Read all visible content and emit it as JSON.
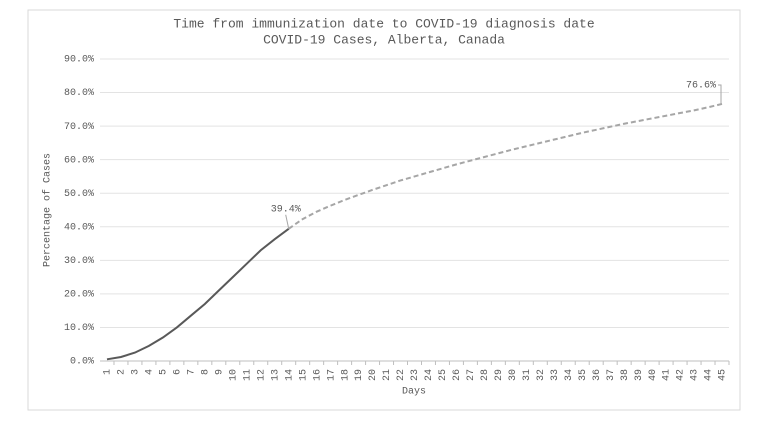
{
  "chart_data": {
    "type": "line",
    "title": "Time from immunization date to COVID-19 diagnosis date",
    "subtitle": "COVID-19 Cases, Alberta, Canada",
    "x_label": "Days",
    "y_label": "Percentage of Cases",
    "categories": [
      "1",
      "2",
      "3",
      "4",
      "5",
      "6",
      "7",
      "8",
      "9",
      "10",
      "11",
      "12",
      "13",
      "14",
      "15",
      "16",
      "17",
      "18",
      "19",
      "20",
      "21",
      "22",
      "23",
      "24",
      "25",
      "26",
      "27",
      "28",
      "29",
      "30",
      "31",
      "32",
      "33",
      "34",
      "35",
      "36",
      "37",
      "38",
      "39",
      "40",
      "41",
      "42",
      "43",
      "44",
      "45"
    ],
    "series": [
      {
        "color": "#595959",
        "line_style": "solid",
        "values": [
          0.5,
          1.2,
          2.5,
          4.5,
          7,
          10,
          13.5,
          17,
          21,
          25,
          29,
          33,
          36.3,
          39.4,
          null,
          null,
          null,
          null,
          null,
          null,
          null,
          null,
          null,
          null,
          null,
          null,
          null,
          null,
          null,
          null,
          null,
          null,
          null,
          null,
          null,
          null,
          null,
          null,
          null,
          null,
          null,
          null,
          null,
          null,
          null
        ],
        "value_labels": [
          null,
          null,
          null,
          null,
          null,
          null,
          null,
          null,
          null,
          null,
          null,
          null,
          null,
          "39.4%",
          null,
          null,
          null,
          null,
          null,
          null,
          null,
          null,
          null,
          null,
          null,
          null,
          null,
          null,
          null,
          null,
          null,
          null,
          null,
          null,
          null,
          null,
          null,
          null,
          null,
          null,
          null,
          null,
          null,
          null,
          null
        ]
      },
      {
        "color": "#a6a6a6",
        "line_style": "dashed",
        "values": [
          null,
          null,
          null,
          null,
          null,
          null,
          null,
          null,
          null,
          null,
          null,
          null,
          null,
          39.4,
          42.3,
          44.5,
          46.3,
          48,
          49.5,
          51,
          52.4,
          53.8,
          55,
          56.2,
          57.4,
          58.6,
          59.7,
          60.8,
          61.9,
          63,
          64,
          65,
          66,
          67,
          68,
          68.9,
          69.8,
          70.7,
          71.5,
          72.3,
          73.1,
          73.9,
          74.7,
          75.6,
          76.6
        ],
        "value_labels": [
          null,
          null,
          null,
          null,
          null,
          null,
          null,
          null,
          null,
          null,
          null,
          null,
          null,
          null,
          null,
          null,
          null,
          null,
          null,
          null,
          null,
          null,
          null,
          null,
          null,
          null,
          null,
          null,
          null,
          null,
          null,
          null,
          null,
          null,
          null,
          null,
          null,
          null,
          null,
          null,
          null,
          null,
          null,
          null,
          "76.6%"
        ]
      }
    ],
    "ylim": [
      0,
      90
    ],
    "yticks": [
      {
        "value": 0,
        "label": "0.0%"
      },
      {
        "value": 10,
        "label": "10.0%"
      },
      {
        "value": 20,
        "label": "20.0%"
      },
      {
        "value": 30,
        "label": "30.0%"
      },
      {
        "value": 40,
        "label": "40.0%"
      },
      {
        "value": 50,
        "label": "50.0%"
      },
      {
        "value": 60,
        "label": "60.0%"
      },
      {
        "value": 70,
        "label": "70.0%"
      },
      {
        "value": 80,
        "label": "80.0%"
      },
      {
        "value": 90,
        "label": "90.0%"
      }
    ],
    "grid": true
  }
}
